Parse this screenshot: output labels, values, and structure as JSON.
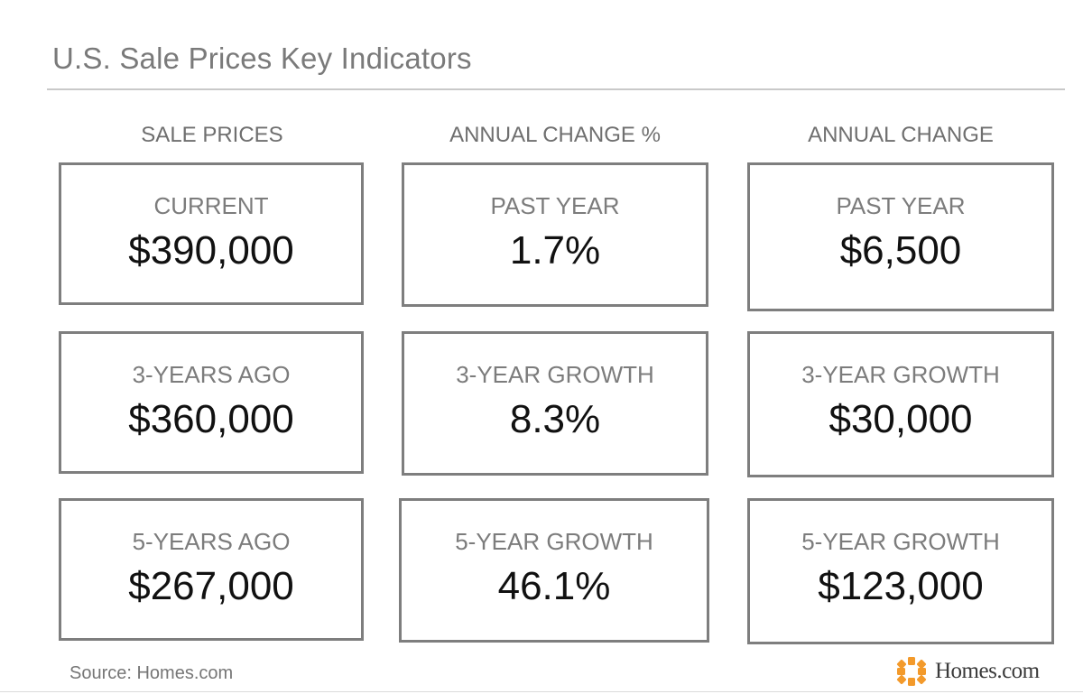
{
  "title": "U.S. Sale Prices Key Indicators",
  "columns": [
    {
      "header": "SALE PRICES",
      "cards": [
        {
          "label": "CURRENT",
          "value": "$390,000"
        },
        {
          "label": "3-YEARS AGO",
          "value": "$360,000"
        },
        {
          "label": "5-YEARS AGO",
          "value": "$267,000"
        }
      ]
    },
    {
      "header": "ANNUAL CHANGE %",
      "cards": [
        {
          "label": "PAST YEAR",
          "value": "1.7%"
        },
        {
          "label": "3-YEAR GROWTH",
          "value": "8.3%"
        },
        {
          "label": "5-YEAR GROWTH",
          "value": "46.1%"
        }
      ]
    },
    {
      "header": "ANNUAL CHANGE",
      "cards": [
        {
          "label": "PAST YEAR",
          "value": "$6,500"
        },
        {
          "label": "3-YEAR GROWTH",
          "value": "$30,000"
        },
        {
          "label": "5-YEAR GROWTH",
          "value": "$123,000"
        }
      ]
    }
  ],
  "footer": {
    "source": "Source: Homes.com",
    "logo_text": "Homes.com",
    "logo_icon": "homes-com-logo-icon",
    "logo_color": "#f39a2b"
  }
}
